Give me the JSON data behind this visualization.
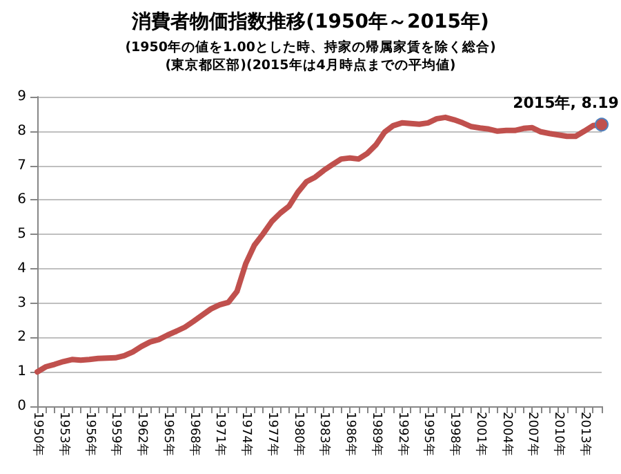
{
  "chart_data": {
    "type": "line",
    "title": "消費者物価指数推移(1950年～2015年)",
    "subtitle": "(1950年の値を1.00とした時、持家の帰属家賃を除く総合)\n(東京都区部)(2015年は4月時点までの平均値)",
    "categories": [
      "1950年",
      null,
      null,
      "1953年",
      null,
      null,
      "1956年",
      null,
      null,
      "1959年",
      null,
      null,
      "1962年",
      null,
      null,
      "1965年",
      null,
      null,
      "1968年",
      null,
      null,
      "1971年",
      null,
      null,
      "1974年",
      null,
      null,
      "1977年",
      null,
      null,
      "1980年",
      null,
      null,
      "1983年",
      null,
      null,
      "1986年",
      null,
      null,
      "1989年",
      null,
      null,
      "1992年",
      null,
      null,
      "1995年",
      null,
      null,
      "1998年",
      null,
      null,
      "2001年",
      null,
      null,
      "2004年",
      null,
      null,
      "2007年",
      null,
      null,
      "2010年",
      null,
      null,
      "2013年",
      null,
      null
    ],
    "series": [
      {
        "color": "#c0504d",
        "values": [
          1.0,
          1.15,
          1.22,
          1.3,
          1.36,
          1.34,
          1.36,
          1.39,
          1.4,
          1.41,
          1.47,
          1.58,
          1.74,
          1.87,
          1.94,
          2.07,
          2.18,
          2.3,
          2.47,
          2.65,
          2.83,
          2.95,
          3.02,
          3.34,
          4.14,
          4.68,
          5.01,
          5.37,
          5.62,
          5.82,
          6.22,
          6.53,
          6.66,
          6.86,
          7.03,
          7.19,
          7.22,
          7.19,
          7.35,
          7.6,
          7.97,
          8.16,
          8.24,
          8.22,
          8.2,
          8.24,
          8.36,
          8.4,
          8.33,
          8.24,
          8.13,
          8.09,
          8.06,
          8.0,
          8.02,
          8.02,
          8.08,
          8.1,
          7.98,
          7.93,
          7.89,
          7.85,
          7.85,
          8.0,
          8.16,
          8.19
        ],
        "value_labels": [
          null,
          null,
          null,
          null,
          null,
          null,
          null,
          null,
          null,
          null,
          null,
          null,
          null,
          null,
          null,
          null,
          null,
          null,
          null,
          null,
          null,
          null,
          null,
          null,
          null,
          null,
          null,
          null,
          null,
          null,
          null,
          null,
          null,
          null,
          null,
          null,
          null,
          null,
          null,
          null,
          null,
          null,
          null,
          null,
          null,
          null,
          null,
          null,
          null,
          null,
          null,
          null,
          null,
          null,
          null,
          null,
          null,
          null,
          null,
          null,
          null,
          null,
          null,
          null,
          null,
          "2015年, 8.19"
        ]
      }
    ],
    "ylim": [
      0,
      9
    ],
    "yticks": [
      0,
      1,
      2,
      3,
      4,
      5,
      6,
      7,
      8,
      9
    ],
    "grid": "y",
    "marker": "none",
    "line_style": "solid"
  }
}
